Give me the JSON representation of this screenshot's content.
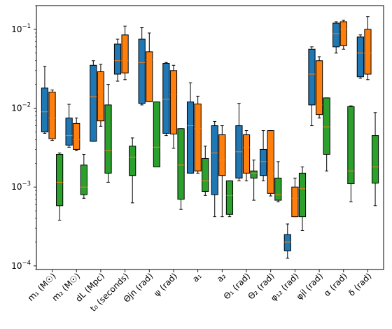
{
  "chart_data": {
    "type": "box",
    "yscale": "log",
    "ylim": [
      9e-05,
      0.2
    ],
    "grid": false,
    "legend": "none",
    "y_tick_labels": [
      {
        "value": 0.0001,
        "base": "10",
        "exp": "−4"
      },
      {
        "value": 0.001,
        "base": "10",
        "exp": "−3"
      },
      {
        "value": 0.01,
        "base": "10",
        "exp": "−2"
      },
      {
        "value": 0.1,
        "base": "10",
        "exp": "−1"
      }
    ],
    "categories": [
      "m₁ (M☉)",
      "m₂ (M☉)",
      "dL (Mpc)",
      "t₀ (seconds)",
      "Θjn (rad)",
      "ψ (rad)",
      "a₁",
      "a₂",
      "Θ₁ (rad)",
      "Θ₂ (rad)",
      "φ₁₂ (rad)",
      "φjl (rad)",
      "α (rad)",
      "δ (rad)"
    ],
    "series": [
      {
        "color": "#1f77b4",
        "boxes": [
          {
            "whislo": 0.0048,
            "q1": 0.005,
            "med": 0.009,
            "q3": 0.018,
            "whishi": 0.034
          },
          {
            "whislo": 0.0032,
            "q1": 0.0034,
            "med": 0.0045,
            "q3": 0.0075,
            "whishi": 0.0112
          },
          {
            "whislo": 0.0038,
            "q1": 0.0038,
            "med": 0.014,
            "q3": 0.035,
            "whishi": 0.04
          },
          {
            "whislo": 0.022,
            "q1": 0.027,
            "med": 0.04,
            "q3": 0.065,
            "whishi": 0.075
          },
          {
            "whislo": 0.011,
            "q1": 0.0115,
            "med": 0.038,
            "q3": 0.075,
            "whishi": 0.105
          },
          {
            "whislo": 0.0045,
            "q1": 0.0048,
            "med": 0.013,
            "q3": 0.037,
            "whishi": 0.038
          },
          {
            "whislo": 0.0015,
            "q1": 0.0015,
            "med": 0.006,
            "q3": 0.012,
            "whishi": 0.021
          },
          {
            "whislo": 0.00042,
            "q1": 0.0008,
            "med": 0.0027,
            "q3": 0.006,
            "whishi": 0.0068
          },
          {
            "whislo": 0.0012,
            "q1": 0.0013,
            "med": 0.0028,
            "q3": 0.006,
            "whishi": 0.0115
          },
          {
            "whislo": 0.0012,
            "q1": 0.0014,
            "med": 0.0021,
            "q3": 0.003,
            "whishi": 0.0052
          },
          {
            "whislo": 0.000125,
            "q1": 0.000155,
            "med": 0.0002,
            "q3": 0.00025,
            "whishi": 0.00034
          },
          {
            "whislo": 0.006,
            "q1": 0.011,
            "med": 0.027,
            "q3": 0.056,
            "whishi": 0.06
          },
          {
            "whislo": 0.05,
            "q1": 0.06,
            "med": 0.088,
            "q3": 0.12,
            "whishi": 0.125
          },
          {
            "whislo": 0.024,
            "q1": 0.025,
            "med": 0.05,
            "q3": 0.08,
            "whishi": 0.085
          }
        ]
      },
      {
        "color": "#ff7f0e",
        "boxes": [
          {
            "whislo": 0.0039,
            "q1": 0.0041,
            "med": 0.0075,
            "q3": 0.016,
            "whishi": 0.017
          },
          {
            "whislo": 0.0029,
            "q1": 0.003,
            "med": 0.004,
            "q3": 0.0064,
            "whishi": 0.0075
          },
          {
            "whislo": 0.0059,
            "q1": 0.0069,
            "med": 0.016,
            "q3": 0.029,
            "whishi": 0.036
          },
          {
            "whislo": 0.023,
            "q1": 0.028,
            "med": 0.04,
            "q3": 0.085,
            "whishi": 0.11
          },
          {
            "whislo": 0.0121,
            "q1": 0.0121,
            "med": 0.041,
            "q3": 0.052,
            "whishi": 0.09
          },
          {
            "whislo": 0.0031,
            "q1": 0.0047,
            "med": 0.015,
            "q3": 0.03,
            "whishi": 0.035
          },
          {
            "whislo": 0.0015,
            "q1": 0.0016,
            "med": 0.0055,
            "q3": 0.0113,
            "whishi": 0.0142
          },
          {
            "whislo": 0.00042,
            "q1": 0.0014,
            "med": 0.0022,
            "q3": 0.0046,
            "whishi": 0.006
          },
          {
            "whislo": 0.0012,
            "q1": 0.0015,
            "med": 0.0032,
            "q3": 0.0046,
            "whishi": 0.0052
          },
          {
            "whislo": 0.00077,
            "q1": 0.00083,
            "med": 0.0015,
            "q3": 0.0052,
            "whishi": 0.0052
          },
          {
            "whislo": 0.00042,
            "q1": 0.00042,
            "med": 0.00072,
            "q3": 0.001,
            "whishi": 0.0013
          },
          {
            "whislo": 0.0075,
            "q1": 0.0083,
            "med": 0.011,
            "q3": 0.04,
            "whishi": 0.045
          },
          {
            "whislo": 0.056,
            "q1": 0.062,
            "med": 0.1,
            "q3": 0.125,
            "whishi": 0.13
          },
          {
            "whislo": 0.023,
            "q1": 0.027,
            "med": 0.05,
            "q3": 0.1,
            "whishi": 0.145
          }
        ]
      },
      {
        "color": "#2ca02c",
        "boxes": [
          {
            "whislo": 0.00038,
            "q1": 0.00058,
            "med": 0.00115,
            "q3": 0.0026,
            "whishi": 0.0027
          },
          {
            "whislo": 0.00072,
            "q1": 0.0008,
            "med": 0.001,
            "q3": 0.0019,
            "whishi": 0.0026
          },
          {
            "whislo": 0.00115,
            "q1": 0.0015,
            "med": 0.0029,
            "q3": 0.011,
            "whishi": 0.02
          },
          {
            "whislo": 0.00063,
            "q1": 0.0014,
            "med": 0.0024,
            "q3": 0.0033,
            "whishi": 0.0042
          },
          {
            "whislo": 0.0018,
            "q1": 0.0018,
            "med": 0.0032,
            "q3": 0.012,
            "whishi": 0.012
          },
          {
            "whislo": 0.00052,
            "q1": 0.0007,
            "med": 0.0019,
            "q3": 0.0055,
            "whishi": 0.0055
          },
          {
            "whislo": 0.00078,
            "q1": 0.00088,
            "med": 0.0012,
            "q3": 0.0023,
            "whishi": 0.0033
          },
          {
            "whislo": 0.00042,
            "q1": 0.00045,
            "med": 0.00078,
            "q3": 0.0012,
            "whishi": 0.0012
          },
          {
            "whislo": 0.00068,
            "q1": 0.0013,
            "med": 0.0015,
            "q3": 0.0016,
            "whishi": 0.0022
          },
          {
            "whislo": 0.00065,
            "q1": 0.00068,
            "med": 0.0008,
            "q3": 0.0013,
            "whishi": 0.0021
          },
          {
            "whislo": 0.00028,
            "q1": 0.00042,
            "med": 0.00095,
            "q3": 0.0015,
            "whishi": 0.0018
          },
          {
            "whislo": 0.0016,
            "q1": 0.0026,
            "med": 0.0058,
            "q3": 0.0135,
            "whishi": 0.0135
          },
          {
            "whislo": 0.00065,
            "q1": 0.0011,
            "med": 0.0016,
            "q3": 0.0105,
            "whishi": 0.0107
          },
          {
            "whislo": 0.00058,
            "q1": 0.00112,
            "med": 0.0018,
            "q3": 0.0045,
            "whishi": 0.0088
          }
        ]
      }
    ]
  }
}
